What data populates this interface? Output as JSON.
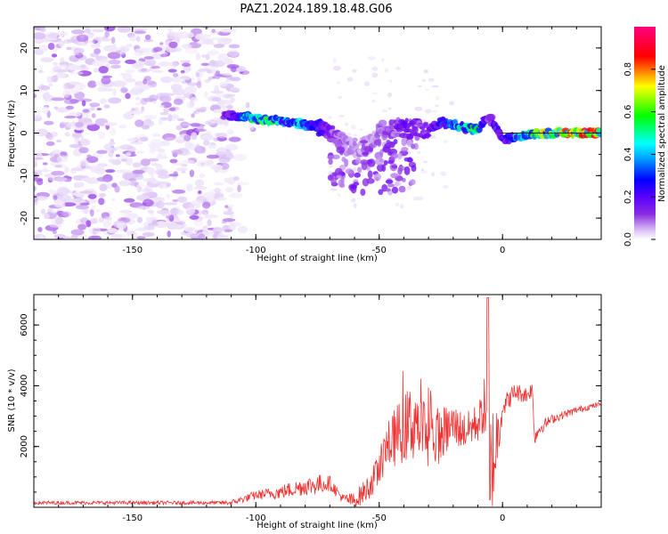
{
  "title": "PAZ1.2024.189.18.48.G06",
  "chart_data": [
    {
      "type": "heatmap",
      "xlabel": "Height of straight line (km)",
      "ylabel": "Frequency (Hz)",
      "xlim": [
        -190,
        40
      ],
      "ylim": [
        -25,
        25
      ],
      "x_ticks": [
        -150,
        -100,
        -50,
        0
      ],
      "y_ticks": [
        20,
        10,
        0,
        -10,
        -20
      ],
      "colorbar": {
        "label": "Normalized spectral amplitude",
        "range": [
          0,
          1
        ],
        "ticks": [
          0.0,
          0.2,
          0.4,
          0.6,
          0.8
        ],
        "colormap": [
          "#ffffff",
          "#ddc6f5",
          "#8a2be2",
          "#6600ff",
          "#0000ff",
          "#00ffff",
          "#00ff00",
          "#ffff00",
          "#ff0000",
          "#ff00aa"
        ]
      },
      "ridge": {
        "x": [
          -113,
          -105,
          -98,
          -90,
          -82,
          -75,
          -70,
          -65,
          -60,
          -55,
          -50,
          -45,
          -40,
          -35,
          -30,
          -25,
          -20,
          -15,
          -10,
          -6,
          -3,
          0,
          5,
          10,
          15,
          20,
          30,
          40
        ],
        "y": [
          4,
          3.8,
          3.2,
          2.8,
          2.2,
          1.5,
          0.5,
          -2.5,
          -3.5,
          -3.0,
          0.5,
          1.0,
          1.2,
          0.8,
          1.0,
          2.5,
          2.0,
          1.2,
          0.8,
          4.0,
          2.0,
          -1.5,
          -1.2,
          -0.3,
          0.0,
          0.0,
          0.0,
          0.0
        ],
        "amplitude": [
          0.3,
          0.55,
          0.75,
          0.6,
          0.55,
          0.45,
          0.3,
          0.2,
          0.2,
          0.15,
          0.2,
          0.25,
          0.35,
          0.3,
          0.3,
          0.45,
          0.55,
          0.6,
          0.75,
          0.3,
          0.4,
          0.4,
          0.55,
          0.7,
          0.8,
          0.85,
          0.9,
          0.9
        ]
      }
    },
    {
      "type": "line",
      "xlabel": "Height of straight line (km)",
      "ylabel": "SNR (10 * v/v)",
      "xlim": [
        -190,
        40
      ],
      "ylim": [
        0,
        7000
      ],
      "x_ticks": [
        -150,
        -100,
        -50,
        0
      ],
      "y_ticks": [
        2000,
        4000,
        6000
      ],
      "color": "#ee3333",
      "envelope": {
        "x": [
          -190,
          -150,
          -110,
          -100,
          -90,
          -80,
          -70,
          -65,
          -60,
          -55,
          -50,
          -48,
          -45,
          -40,
          -35,
          -30,
          -25,
          -20,
          -15,
          -10,
          -8,
          -6,
          -5,
          0,
          5,
          10,
          12,
          13,
          15,
          20,
          30,
          40
        ],
        "y": [
          150,
          150,
          150,
          400,
          500,
          700,
          800,
          300,
          200,
          600,
          1200,
          1800,
          2200,
          2600,
          2900,
          2200,
          2400,
          2700,
          2500,
          2800,
          3100,
          3500,
          1000,
          3300,
          3800,
          3700,
          3900,
          2300,
          2600,
          2900,
          3200,
          3400
        ]
      },
      "noise_amplitude": {
        "x": [
          -190,
          -115,
          -100,
          -75,
          -65,
          -52,
          -45,
          -35,
          -25,
          -15,
          -8,
          -5,
          0,
          13,
          20,
          40
        ],
        "y": [
          60,
          60,
          150,
          350,
          150,
          500,
          900,
          1400,
          900,
          600,
          700,
          2500,
          350,
          250,
          150,
          80
        ]
      }
    }
  ]
}
